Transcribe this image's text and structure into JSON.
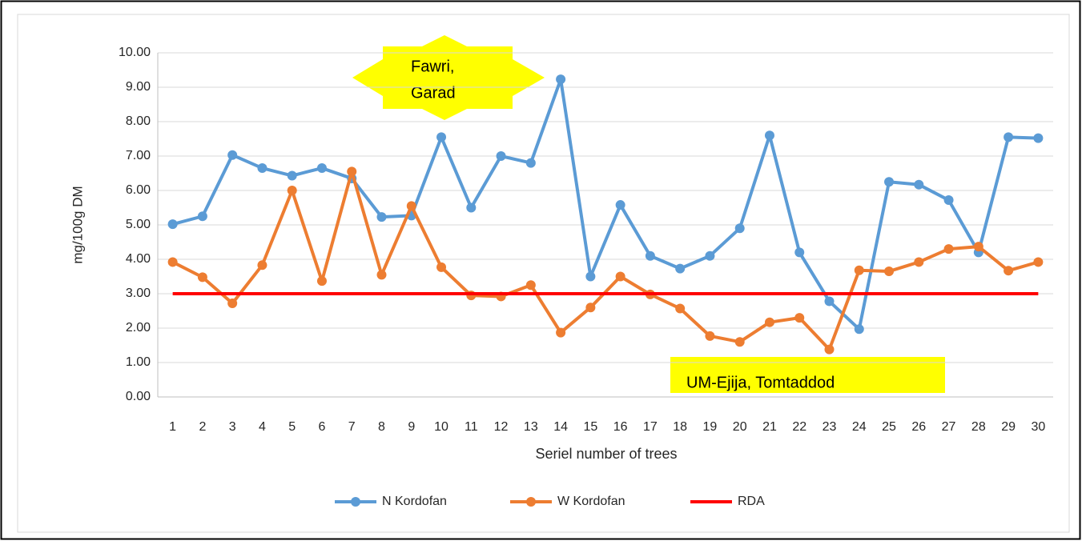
{
  "chart_data": {
    "type": "line",
    "y_label": "mg/100g DM",
    "x_label": "Seriel number of trees",
    "categories": [
      "1",
      "2",
      "3",
      "4",
      "5",
      "6",
      "7",
      "8",
      "9",
      "10",
      "11",
      "12",
      "13",
      "14",
      "15",
      "16",
      "17",
      "18",
      "19",
      "20",
      "21",
      "22",
      "23",
      "24",
      "25",
      "26",
      "27",
      "28",
      "29",
      "30"
    ],
    "series": [
      {
        "name": "N Kordofan",
        "color": "#5b9bd5",
        "markers": true,
        "values": [
          5.02,
          5.25,
          7.03,
          6.65,
          6.43,
          6.65,
          6.35,
          5.23,
          5.27,
          7.55,
          5.5,
          7.0,
          6.8,
          9.23,
          3.5,
          5.58,
          4.1,
          3.73,
          4.1,
          4.9,
          7.6,
          4.2,
          2.78,
          1.97,
          6.25,
          6.17,
          5.72,
          4.2,
          7.55,
          7.52
        ]
      },
      {
        "name": "W Kordofan",
        "color": "#ed7d31",
        "markers": true,
        "values": [
          3.92,
          3.48,
          2.72,
          3.83,
          6.0,
          3.37,
          6.55,
          3.55,
          5.55,
          3.77,
          2.95,
          2.92,
          3.25,
          1.87,
          2.6,
          3.5,
          2.98,
          2.57,
          1.77,
          1.6,
          2.17,
          2.3,
          1.38,
          3.68,
          3.65,
          3.92,
          4.3,
          4.37,
          3.67,
          3.92
        ]
      },
      {
        "name": "RDA",
        "color": "#ff0000",
        "markers": false,
        "values": [
          3,
          3,
          3,
          3,
          3,
          3,
          3,
          3,
          3,
          3,
          3,
          3,
          3,
          3,
          3,
          3,
          3,
          3,
          3,
          3,
          3,
          3,
          3,
          3,
          3,
          3,
          3,
          3,
          3,
          3
        ]
      }
    ],
    "ylim": [
      0,
      10
    ],
    "yticks": [
      {
        "value": 0,
        "label": "0.00"
      },
      {
        "value": 1,
        "label": "1.00"
      },
      {
        "value": 2,
        "label": "2.00"
      },
      {
        "value": 3,
        "label": "3.00"
      },
      {
        "value": 4,
        "label": "4.00"
      },
      {
        "value": 5,
        "label": "5.00"
      },
      {
        "value": 6,
        "label": "6.00"
      },
      {
        "value": 7,
        "label": "7.00"
      },
      {
        "value": 8,
        "label": "8.00"
      },
      {
        "value": 9,
        "label": "9.00"
      },
      {
        "value": 10,
        "label": "10.00"
      }
    ],
    "grid": true,
    "legend": "bottom",
    "annotations": [
      {
        "lines": [
          "Fawri,",
          "Garad"
        ],
        "color": "#ffff00"
      },
      {
        "lines": [
          "UM-Ejija, Tomtaddod"
        ],
        "color": "#ffff00"
      }
    ]
  }
}
